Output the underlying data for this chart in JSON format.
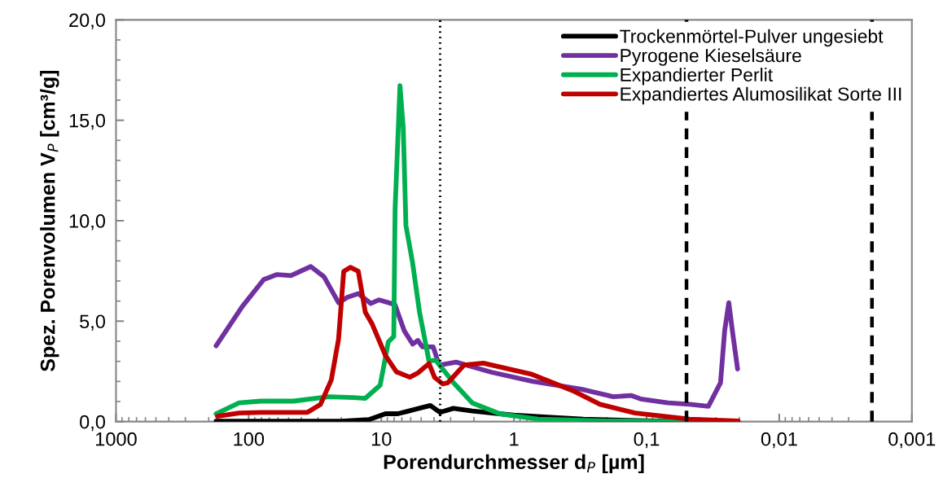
{
  "chart_data": {
    "type": "line",
    "xlabel": "Porendurchmesser d$_{P}$ [µm]",
    "ylabel": "Spez. Porenvolumen V$_{P}$ [cm³/g]",
    "log": "x",
    "xlim": [
      1000,
      0.001
    ],
    "xticks": [
      1000,
      100,
      10,
      1,
      {
        "value": 0.1,
        "label": "0,1"
      },
      {
        "value": 0.01,
        "label": "0,01"
      },
      {
        "value": 0.001,
        "label": "0,001"
      }
    ],
    "ylim": [
      0,
      20
    ],
    "yticks": [
      {
        "value": 0,
        "label": "0,0"
      },
      {
        "value": 5,
        "label": "5,0"
      },
      {
        "value": 10,
        "label": "10,0"
      },
      {
        "value": 15,
        "label": "15,0"
      },
      {
        "value": 20,
        "label": "20,0"
      }
    ],
    "grid": false,
    "legend": "top right",
    "line_style": "solid",
    "series": [
      {
        "name": "Trockenmörtel-Pulver ungesiebt",
        "color": "#000000",
        "x": [
          176,
          60,
          20,
          12.4,
          9.3,
          7.5,
          6.2,
          4.27,
          3.6,
          2.86,
          2.06,
          1.01,
          0.3,
          0.1,
          0.0204
        ],
        "values": [
          0.02,
          0.02,
          0.02,
          0.1,
          0.39,
          0.39,
          0.53,
          0.8,
          0.46,
          0.66,
          0.53,
          0.32,
          0.12,
          0.04,
          0.0
        ]
      },
      {
        "name": "Pyrogene Kieselsäure",
        "color": "#7030a0",
        "x": [
          176,
          112,
          77,
          61,
          48,
          34,
          27,
          21,
          18,
          14.9,
          12.0,
          10.4,
          7.9,
          6.7,
          5.8,
          5.3,
          4.9,
          4.06,
          3.7,
          3.6,
          2.73,
          1.48,
          0.73,
          0.31,
          0.178,
          0.131,
          0.111,
          0.069,
          0.0475,
          0.0342,
          0.0277,
          0.0258,
          0.024,
          0.0224,
          0.0206
        ],
        "values": [
          3.77,
          5.72,
          7.07,
          7.32,
          7.27,
          7.72,
          7.21,
          5.92,
          6.19,
          6.37,
          5.88,
          6.06,
          5.83,
          4.51,
          3.86,
          4.04,
          3.72,
          3.72,
          2.89,
          2.82,
          2.96,
          2.46,
          2.01,
          1.61,
          1.24,
          1.3,
          1.13,
          0.93,
          0.86,
          0.76,
          1.94,
          4.51,
          5.92,
          4.37,
          2.62
        ]
      },
      {
        "name": "Expandierter Perlit",
        "color": "#00b050",
        "x": [
          176,
          118,
          81,
          46,
          25,
          16.3,
          13.2,
          10.2,
          8.85,
          8.05,
          7.87,
          7.23,
          6.83,
          6.52,
          5.8,
          5.15,
          4.37,
          3.88,
          2.86,
          2.06,
          1.28,
          0.66,
          0.2,
          0.0204
        ],
        "values": [
          0.39,
          0.93,
          1.02,
          1.02,
          1.24,
          1.2,
          1.16,
          1.81,
          3.97,
          4.24,
          10.58,
          16.72,
          14.63,
          9.77,
          7.88,
          5.45,
          3.02,
          3.05,
          1.94,
          0.93,
          0.39,
          0.12,
          0.03,
          0.0
        ]
      },
      {
        "name": "Expandiertes Alumosilikat Sorte III",
        "color": "#c00000",
        "x": [
          172,
          118,
          81,
          36,
          28.7,
          23.8,
          21,
          19.2,
          17.1,
          14.9,
          13.2,
          11.7,
          9.3,
          7.7,
          6.1,
          5.3,
          4.37,
          3.97,
          3.45,
          3.14,
          2.37,
          1.7,
          0.73,
          0.36,
          0.225,
          0.122,
          0.0475,
          0.0204
        ],
        "values": [
          0.26,
          0.43,
          0.46,
          0.46,
          0.86,
          2.08,
          4.1,
          7.48,
          7.68,
          7.48,
          5.45,
          4.85,
          3.29,
          2.48,
          2.21,
          2.42,
          2.89,
          2.21,
          1.88,
          1.94,
          2.82,
          2.91,
          2.35,
          1.54,
          0.86,
          0.43,
          0.12,
          0.03
        ]
      }
    ],
    "ref_lines": [
      {
        "axis": "x",
        "value": 3.6,
        "color": "#000000",
        "line_style": "dotted"
      },
      {
        "axis": "x",
        "value": 0.05,
        "color": "#000000",
        "line_style": "dashed"
      },
      {
        "axis": "x",
        "value": 0.002,
        "color": "#000000",
        "line_style": "dashed"
      }
    ]
  }
}
